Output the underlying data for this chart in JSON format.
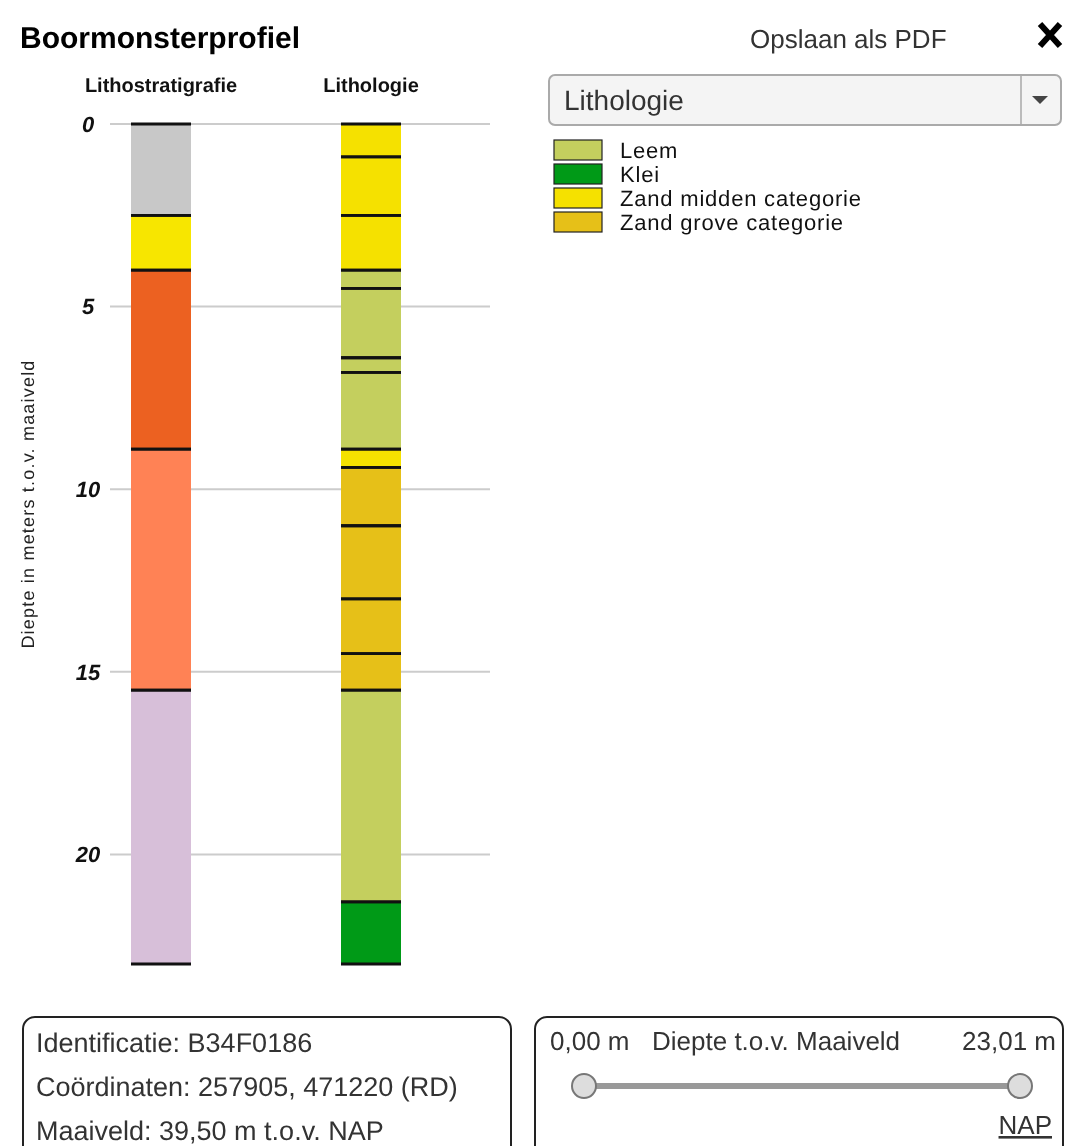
{
  "chart_data": {
    "type": "bar",
    "title": "Boormonsterprofiel",
    "categories": [
      "Lithostratigrafie",
      "Lithologie"
    ],
    "ylabel": "Diepte in meters t.o.v. maaiveld",
    "ylim": [
      23,
      0
    ],
    "yticks": [
      0,
      5,
      10,
      15,
      20
    ],
    "grid": "y",
    "legend": "top right",
    "series": [
      {
        "name": "Leem",
        "color": "#c4cf5e",
        "base": [
          null,
          4.0
        ],
        "values": [
          null,
          0.5
        ]
      },
      {
        "name": "Klei",
        "color": "#009a17",
        "base": [
          null,
          21.3
        ],
        "values": [
          null,
          1.7
        ]
      },
      {
        "name": "Zand midden categorie",
        "color": "#f5e100",
        "base": [
          null,
          0
        ],
        "values": [
          null,
          0.9
        ]
      },
      {
        "name": "Zand grove categorie",
        "color": "#e6c018",
        "base": [
          null,
          9.4
        ],
        "values": [
          null,
          1.6
        ]
      },
      {
        "color": "#f5e100",
        "base": [
          null,
          0.9
        ],
        "values": [
          null,
          1.6
        ]
      },
      {
        "color": "#f5e100",
        "base": [
          null,
          2.5
        ],
        "values": [
          null,
          1.5
        ]
      },
      {
        "color": "#c4cf5e",
        "base": [
          null,
          4.5
        ],
        "values": [
          null,
          1.9
        ]
      },
      {
        "color": "#c4cf5e",
        "base": [
          null,
          6.4
        ],
        "values": [
          null,
          0.4
        ]
      },
      {
        "color": "#c4cf5e",
        "base": [
          null,
          6.8
        ],
        "values": [
          null,
          2.1
        ]
      },
      {
        "color": "#f5e100",
        "base": [
          null,
          8.9
        ],
        "values": [
          null,
          0.5
        ]
      },
      {
        "color": "#e6c018",
        "base": [
          null,
          11.0
        ],
        "values": [
          null,
          2.0
        ]
      },
      {
        "color": "#e6c018",
        "base": [
          null,
          13.0
        ],
        "values": [
          null,
          1.5
        ]
      },
      {
        "color": "#e6c018",
        "base": [
          null,
          14.5
        ],
        "values": [
          null,
          1.0
        ]
      },
      {
        "color": "#c4cf5e",
        "base": [
          null,
          15.5
        ],
        "values": [
          null,
          5.8
        ]
      },
      {
        "color": "#c8c8c8",
        "base": [
          0,
          null
        ],
        "values": [
          2.5,
          null
        ]
      },
      {
        "color": "#f7e600",
        "base": [
          2.5,
          null
        ],
        "values": [
          1.5,
          null
        ]
      },
      {
        "color": "#ec6121",
        "base": [
          4.0,
          null
        ],
        "values": [
          4.9,
          null
        ]
      },
      {
        "color": "#ff8255",
        "base": [
          8.9,
          null
        ],
        "values": [
          6.6,
          null
        ]
      },
      {
        "color": "#d7bfd9",
        "base": [
          15.5,
          null
        ],
        "values": [
          7.5,
          null
        ]
      }
    ],
    "annotations": [
      "Opslaan als PDF",
      "Lithologie",
      "Identificatie: B34F0186",
      "Coördinaten: 257905, 471220 (RD)",
      "Maaiveld: 39,50 m t.o.v. NAP",
      "0,00 m",
      "Diepte t.o.v. Maaiveld",
      "23,01 m",
      "NAP"
    ]
  }
}
